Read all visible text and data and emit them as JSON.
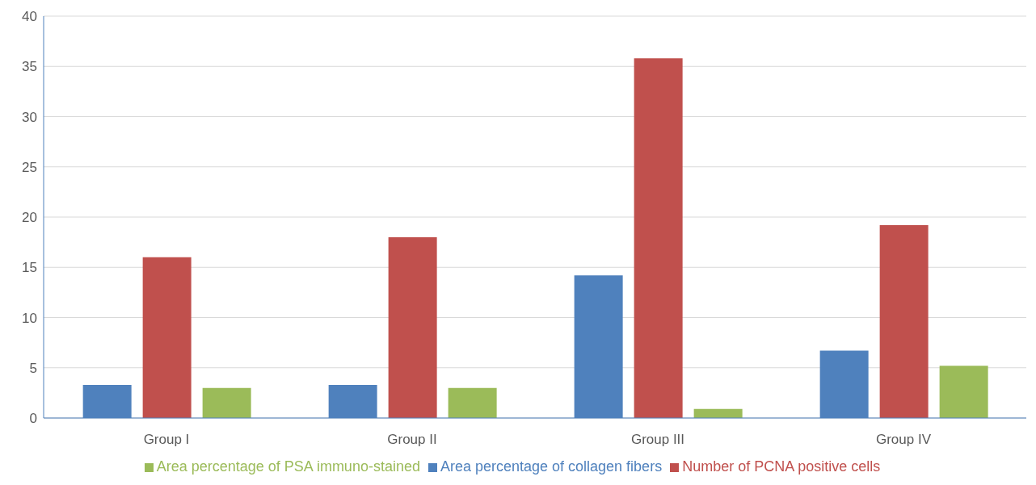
{
  "chart_data": {
    "type": "bar",
    "categories": [
      "Group I",
      "Group II",
      "Group III",
      "Group IV"
    ],
    "series": [
      {
        "name": "Area percentage of collagen fibers",
        "color": "#4f81bd",
        "values": [
          3.3,
          3.3,
          14.2,
          6.7
        ]
      },
      {
        "name": "Number of PCNA positive cells",
        "color": "#c0504d",
        "values": [
          16.0,
          18.0,
          35.8,
          19.2
        ]
      },
      {
        "name": "Area percentage of PSA immuno-stained",
        "color": "#9bbb59",
        "values": [
          3.0,
          3.0,
          0.9,
          5.2
        ]
      }
    ],
    "ylim": [
      0,
      40
    ],
    "yticks": [
      0,
      5,
      10,
      15,
      20,
      25,
      30,
      35,
      40
    ],
    "grid": "y",
    "legend": "bottom"
  }
}
